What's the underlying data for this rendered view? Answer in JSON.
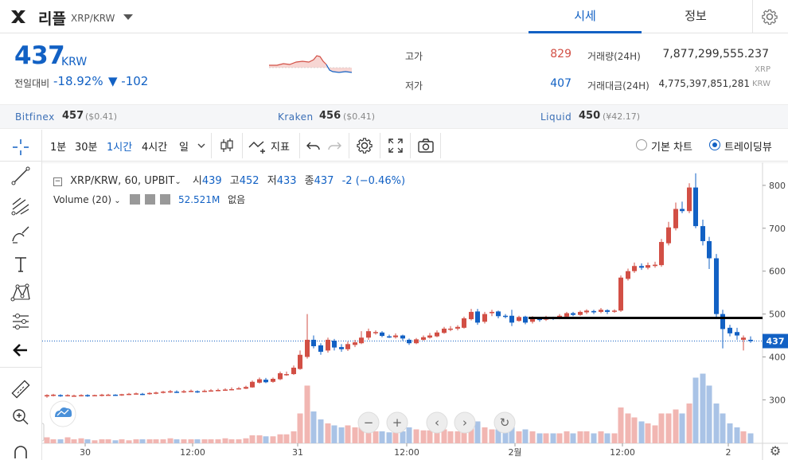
{
  "header": {
    "coin_name": "리플",
    "pair": "XRP/KRW",
    "tabs": [
      {
        "label": "시세",
        "active": true
      },
      {
        "label": "정보",
        "active": false
      }
    ]
  },
  "price": {
    "value": "437",
    "unit": "KRW",
    "change_label": "전일대비",
    "change_pct": "-18.92%",
    "change_abs": "▼ -102"
  },
  "stats": {
    "high_label": "고가",
    "high": "829",
    "low_label": "저가",
    "low": "407",
    "vol_label": "거래량(24H)",
    "vol": "7,877,299,555.237",
    "vol_unit": "XRP",
    "amt_label": "거래대금(24H)",
    "amt": "4,775,397,851,281",
    "amt_unit": "KRW"
  },
  "exchanges": [
    {
      "name": "Bitfinex",
      "value": "457",
      "sub": "($0.41)"
    },
    {
      "name": "Kraken",
      "value": "456",
      "sub": "($0.41)"
    },
    {
      "name": "Liquid",
      "value": "450",
      "sub": "(¥42.17)"
    }
  ],
  "toolbar": {
    "intervals": [
      {
        "label": "1분",
        "active": false
      },
      {
        "label": "30분",
        "active": false
      },
      {
        "label": "1시간",
        "active": true
      },
      {
        "label": "4시간",
        "active": false
      },
      {
        "label": "일",
        "active": false
      }
    ],
    "indicators_label": "지표",
    "basic_chart_label": "기본 차트",
    "tradingview_label": "트레이딩뷰"
  },
  "legend": {
    "symbol": "XRP/KRW, 60, UPBIT",
    "o_label": "시",
    "o": "439",
    "h_label": "고",
    "h": "452",
    "l_label": "저",
    "l": "433",
    "c_label": "종",
    "c": "437",
    "change": "-2 (−0.46%)",
    "volume_label": "Volume (20)",
    "volume_value": "52.521M",
    "volume_extra": "없음"
  },
  "colors": {
    "accent": "#1261c4",
    "up": "#d24f45",
    "down": "#1261c4"
  },
  "chart_data": {
    "type": "candlestick",
    "y_ticks": [
      300,
      400,
      500,
      600,
      700,
      800
    ],
    "x_ticks": [
      "30",
      "12:00",
      "31",
      "12:00",
      "2월",
      "12:00",
      "2"
    ],
    "last_price": "437",
    "horizontal_line": 491
  }
}
